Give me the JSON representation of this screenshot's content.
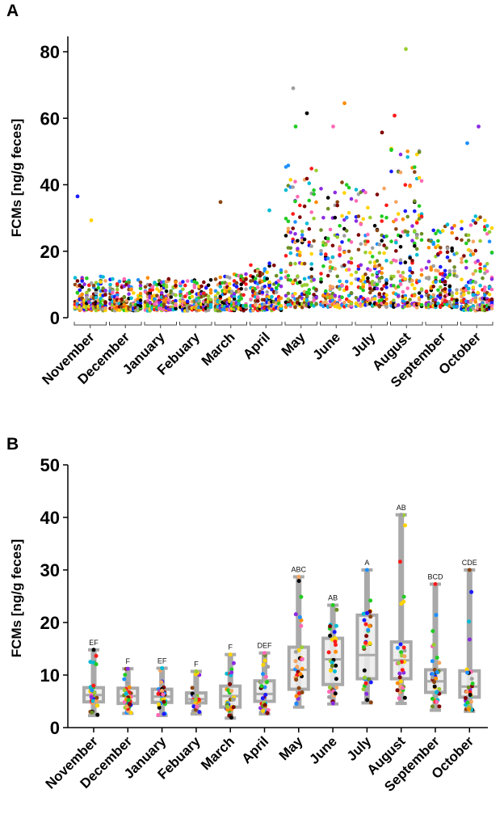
{
  "chart_data": [
    {
      "panel": "A",
      "type": "scatter",
      "ylabel": "FCMs [ng/g feces]",
      "xlabel": "",
      "ylim": [
        0,
        85
      ],
      "yticks": [
        0,
        20,
        40,
        60,
        80
      ],
      "categories": [
        "November",
        "December",
        "January",
        "Febuary",
        "March",
        "April",
        "May",
        "June",
        "July",
        "August",
        "September",
        "October"
      ],
      "high_points": [
        {
          "month": "November",
          "y": 36.5
        },
        {
          "month": "November",
          "y": 29.3
        },
        {
          "month": "March",
          "y": 34.8
        },
        {
          "month": "April",
          "y": 32.3
        },
        {
          "month": "May",
          "y": 69.0
        },
        {
          "month": "May",
          "y": 61.5
        },
        {
          "month": "May",
          "y": 57.5
        },
        {
          "month": "June",
          "y": 64.5
        },
        {
          "month": "June",
          "y": 57.5
        },
        {
          "month": "July",
          "y": 55.7
        },
        {
          "month": "August",
          "y": 80.8
        },
        {
          "month": "August",
          "y": 60.8
        },
        {
          "month": "October",
          "y": 57.5
        },
        {
          "month": "October",
          "y": 52.5
        }
      ],
      "monthly_summary": [
        {
          "month": "November",
          "low": 2,
          "high": 12
        },
        {
          "month": "December",
          "low": 2,
          "high": 11
        },
        {
          "month": "January",
          "low": 2,
          "high": 11
        },
        {
          "month": "Febuary",
          "low": 2,
          "high": 11
        },
        {
          "month": "March",
          "low": 2,
          "high": 13
        },
        {
          "month": "April",
          "low": 2,
          "high": 16
        },
        {
          "month": "May",
          "low": 3,
          "high": 45
        },
        {
          "month": "June",
          "low": 3,
          "high": 40
        },
        {
          "month": "July",
          "low": 3,
          "high": 38
        },
        {
          "month": "August",
          "low": 3,
          "high": 50
        },
        {
          "month": "September",
          "low": 3,
          "high": 28
        },
        {
          "month": "October",
          "low": 2,
          "high": 30
        }
      ]
    },
    {
      "panel": "B",
      "type": "box",
      "ylabel": "FCMs [ng/g feces]",
      "xlabel": "",
      "ylim": [
        0,
        50
      ],
      "yticks": [
        0,
        10,
        20,
        30,
        40,
        50
      ],
      "categories": [
        "November",
        "December",
        "January",
        "Febuary",
        "March",
        "April",
        "May",
        "June",
        "July",
        "August",
        "September",
        "October"
      ],
      "boxes": [
        {
          "month": "November",
          "min": 2.3,
          "q1": 4.9,
          "median": 6.2,
          "q3": 7.6,
          "max": 14.8,
          "letters": "EF"
        },
        {
          "month": "December",
          "min": 2.7,
          "q1": 4.6,
          "median": 6.0,
          "q3": 7.5,
          "max": 11.2,
          "letters": "F"
        },
        {
          "month": "January",
          "min": 2.3,
          "q1": 4.8,
          "median": 5.9,
          "q3": 7.3,
          "max": 11.3,
          "letters": "EF"
        },
        {
          "month": "Febuary",
          "min": 2.6,
          "q1": 4.7,
          "median": 5.4,
          "q3": 6.6,
          "max": 10.7,
          "letters": "F"
        },
        {
          "month": "March",
          "min": 1.8,
          "q1": 3.9,
          "median": 6.0,
          "q3": 7.9,
          "max": 13.9,
          "letters": "F"
        },
        {
          "month": "April",
          "min": 2.6,
          "q1": 5.0,
          "median": 6.4,
          "q3": 8.9,
          "max": 14.2,
          "letters": "DEF"
        },
        {
          "month": "May",
          "min": 3.9,
          "q1": 7.3,
          "median": 11.0,
          "q3": 15.3,
          "max": 28.7,
          "letters": "ABC"
        },
        {
          "month": "June",
          "min": 4.5,
          "q1": 8.2,
          "median": 13.0,
          "q3": 17.0,
          "max": 23.3,
          "letters": "AB"
        },
        {
          "month": "July",
          "min": 4.7,
          "q1": 9.3,
          "median": 13.8,
          "q3": 21.4,
          "max": 30.0,
          "letters": "A"
        },
        {
          "month": "August",
          "min": 4.6,
          "q1": 9.3,
          "median": 12.8,
          "q3": 16.3,
          "max": 40.5,
          "letters": "AB"
        },
        {
          "month": "September",
          "min": 3.3,
          "q1": 6.7,
          "median": 8.8,
          "q3": 11.0,
          "max": 27.3,
          "letters": "BCD"
        },
        {
          "month": "October",
          "min": 3.1,
          "q1": 5.8,
          "median": 7.8,
          "q3": 10.8,
          "max": 30.0,
          "letters": "CDE"
        }
      ]
    }
  ],
  "palette": [
    "#000000",
    "#1a1aff",
    "#ff1a1a",
    "#22cc22",
    "#ffd400",
    "#8a2be2",
    "#ff8c00",
    "#8b4513",
    "#1e90ff",
    "#ff69b4",
    "#00bcd4",
    "#6b8e23",
    "#800000",
    "#a0a0a0",
    "#f4a460",
    "#9acd32"
  ]
}
